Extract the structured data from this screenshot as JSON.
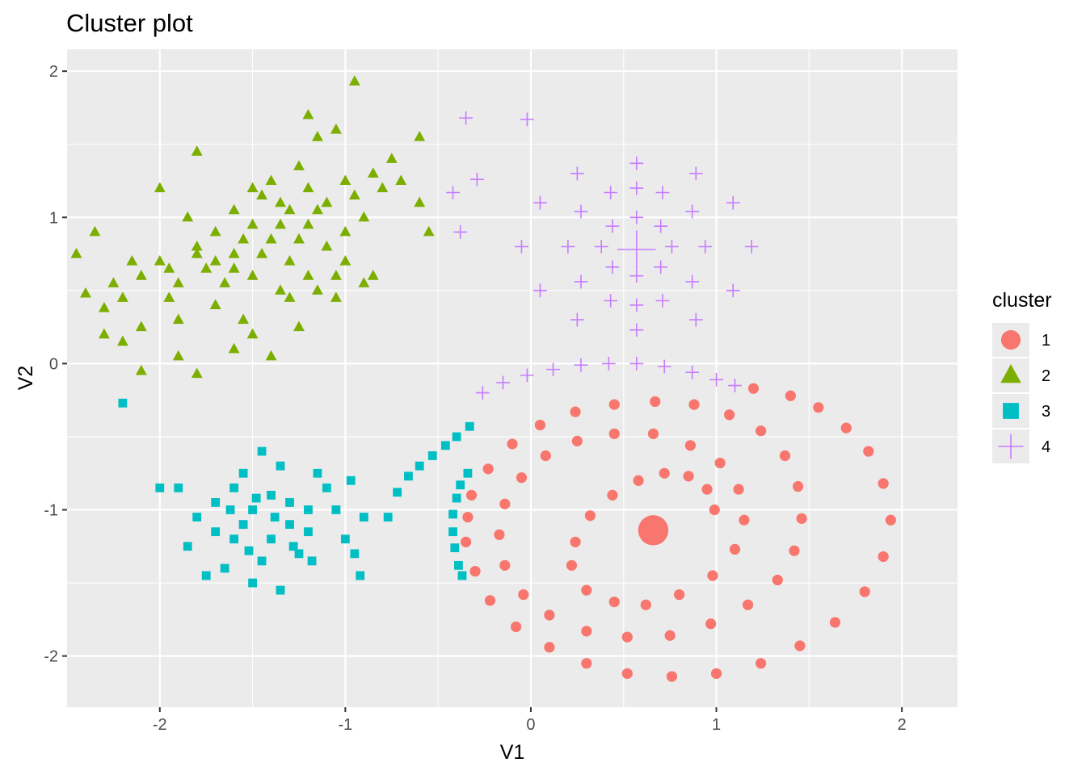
{
  "chart_data": {
    "type": "scatter",
    "title": "Cluster plot",
    "xlabel": "V1",
    "ylabel": "V2",
    "xlim": [
      -2.5,
      2.3
    ],
    "ylim": [
      -2.35,
      2.15
    ],
    "x_ticks": [
      {
        "value": -2,
        "label": "-2"
      },
      {
        "value": -1,
        "label": "-1"
      },
      {
        "value": 0,
        "label": "0"
      },
      {
        "value": 1,
        "label": "1"
      },
      {
        "value": 2,
        "label": "2"
      }
    ],
    "y_ticks": [
      {
        "value": -2,
        "label": "-2"
      },
      {
        "value": -1,
        "label": "-1"
      },
      {
        "value": 0,
        "label": "0"
      },
      {
        "value": 1,
        "label": "1"
      },
      {
        "value": 2,
        "label": "2"
      }
    ],
    "grid": true,
    "legend_position": "right",
    "legend": {
      "title": "cluster",
      "entries": [
        {
          "label": "1",
          "color": "#F8766D",
          "shape": "circle"
        },
        {
          "label": "2",
          "color": "#7CAE00",
          "shape": "triangle"
        },
        {
          "label": "3",
          "color": "#00BFC4",
          "shape": "square"
        },
        {
          "label": "4",
          "color": "#C77CFF",
          "shape": "plus"
        }
      ]
    },
    "centers": [
      {
        "cluster": "1",
        "x": 0.66,
        "y": -1.14
      },
      {
        "cluster": "4",
        "x": 0.57,
        "y": 0.78
      }
    ],
    "series": [
      {
        "name": "1",
        "color": "#F8766D",
        "shape": "circle",
        "points": [
          [
            0.99,
            -1.0
          ],
          [
            0.95,
            -0.86
          ],
          [
            0.85,
            -0.77
          ],
          [
            0.72,
            -0.75
          ],
          [
            0.58,
            -0.8
          ],
          [
            0.44,
            -0.9
          ],
          [
            0.32,
            -1.04
          ],
          [
            0.24,
            -1.22
          ],
          [
            0.22,
            -1.38
          ],
          [
            0.3,
            -1.55
          ],
          [
            0.45,
            -1.63
          ],
          [
            0.62,
            -1.65
          ],
          [
            0.8,
            -1.58
          ],
          [
            0.98,
            -1.45
          ],
          [
            1.1,
            -1.27
          ],
          [
            1.15,
            -1.07
          ],
          [
            1.12,
            -0.86
          ],
          [
            1.02,
            -0.68
          ],
          [
            0.86,
            -0.56
          ],
          [
            0.66,
            -0.48
          ],
          [
            0.45,
            -0.48
          ],
          [
            0.25,
            -0.53
          ],
          [
            0.08,
            -0.63
          ],
          [
            -0.05,
            -0.78
          ],
          [
            -0.14,
            -0.96
          ],
          [
            -0.17,
            -1.17
          ],
          [
            -0.14,
            -1.38
          ],
          [
            -0.04,
            -1.58
          ],
          [
            0.1,
            -1.72
          ],
          [
            0.3,
            -1.83
          ],
          [
            0.52,
            -1.87
          ],
          [
            0.75,
            -1.86
          ],
          [
            0.97,
            -1.78
          ],
          [
            1.17,
            -1.65
          ],
          [
            1.33,
            -1.48
          ],
          [
            1.42,
            -1.28
          ],
          [
            1.46,
            -1.06
          ],
          [
            1.44,
            -0.84
          ],
          [
            1.37,
            -0.63
          ],
          [
            1.24,
            -0.46
          ],
          [
            1.07,
            -0.35
          ],
          [
            0.88,
            -0.28
          ],
          [
            0.67,
            -0.26
          ],
          [
            0.45,
            -0.28
          ],
          [
            0.24,
            -0.33
          ],
          [
            0.05,
            -0.42
          ],
          [
            -0.1,
            -0.55
          ],
          [
            -0.23,
            -0.72
          ],
          [
            -0.32,
            -0.9
          ],
          [
            -0.34,
            -1.05
          ],
          [
            -0.35,
            -1.22
          ],
          [
            -0.3,
            -1.42
          ],
          [
            -0.22,
            -1.62
          ],
          [
            -0.08,
            -1.8
          ],
          [
            0.1,
            -1.94
          ],
          [
            0.3,
            -2.05
          ],
          [
            0.52,
            -2.12
          ],
          [
            0.76,
            -2.14
          ],
          [
            1.0,
            -2.12
          ],
          [
            1.24,
            -2.05
          ],
          [
            1.45,
            -1.93
          ],
          [
            1.64,
            -1.77
          ],
          [
            1.8,
            -1.56
          ],
          [
            1.9,
            -1.32
          ],
          [
            1.94,
            -1.07
          ],
          [
            1.9,
            -0.82
          ],
          [
            1.82,
            -0.6
          ],
          [
            1.7,
            -0.44
          ],
          [
            1.55,
            -0.3
          ],
          [
            1.4,
            -0.22
          ],
          [
            1.2,
            -0.17
          ]
        ]
      },
      {
        "name": "2",
        "color": "#7CAE00",
        "shape": "triangle",
        "points": [
          [
            -2.4,
            0.48
          ],
          [
            -2.3,
            0.38
          ],
          [
            -2.2,
            0.45
          ],
          [
            -2.1,
            0.6
          ],
          [
            -2.0,
            0.7
          ],
          [
            -1.9,
            0.55
          ],
          [
            -1.8,
            0.8
          ],
          [
            -1.7,
            0.9
          ],
          [
            -1.6,
            0.75
          ],
          [
            -1.5,
            0.95
          ],
          [
            -1.4,
            0.85
          ],
          [
            -1.3,
            1.05
          ],
          [
            -1.2,
            0.95
          ],
          [
            -1.1,
            1.1
          ],
          [
            -1.0,
            0.9
          ],
          [
            -0.9,
            1.0
          ],
          [
            -0.8,
            1.2
          ],
          [
            -0.7,
            1.25
          ],
          [
            -0.6,
            1.1
          ],
          [
            -0.55,
            0.9
          ],
          [
            -1.4,
            1.25
          ],
          [
            -1.25,
            1.35
          ],
          [
            -1.15,
            1.55
          ],
          [
            -1.05,
            1.6
          ],
          [
            -0.95,
            1.93
          ],
          [
            -1.2,
            1.7
          ],
          [
            -1.8,
            1.45
          ],
          [
            -2.0,
            1.2
          ],
          [
            -2.2,
            0.15
          ],
          [
            -2.1,
            -0.05
          ],
          [
            -1.8,
            -0.07
          ],
          [
            -1.6,
            0.1
          ],
          [
            -1.4,
            0.05
          ],
          [
            -1.55,
            0.3
          ],
          [
            -1.35,
            0.5
          ],
          [
            -1.2,
            0.6
          ],
          [
            -1.0,
            0.7
          ],
          [
            -0.9,
            0.55
          ],
          [
            -1.7,
            0.4
          ],
          [
            -1.9,
            0.3
          ],
          [
            -2.1,
            0.25
          ],
          [
            -2.3,
            0.2
          ],
          [
            -1.6,
            1.05
          ],
          [
            -1.45,
            1.15
          ],
          [
            -1.3,
            0.7
          ],
          [
            -1.1,
            0.8
          ],
          [
            -0.75,
            1.4
          ],
          [
            -0.6,
            1.55
          ],
          [
            -1.5,
            0.6
          ],
          [
            -1.65,
            0.55
          ],
          [
            -1.75,
            0.65
          ],
          [
            -1.85,
            1.0
          ],
          [
            -2.35,
            0.9
          ],
          [
            -2.45,
            0.75
          ],
          [
            -1.95,
            0.45
          ],
          [
            -1.05,
            0.45
          ],
          [
            -0.85,
            0.6
          ],
          [
            -1.25,
            0.85
          ],
          [
            -1.35,
            0.95
          ],
          [
            -1.55,
            0.85
          ],
          [
            -1.7,
            0.7
          ],
          [
            -1.95,
            0.65
          ],
          [
            -2.15,
            0.7
          ],
          [
            -2.25,
            0.55
          ],
          [
            -1.5,
            1.2
          ],
          [
            -1.35,
            1.1
          ],
          [
            -1.15,
            1.05
          ],
          [
            -0.95,
            1.15
          ],
          [
            -0.85,
            1.3
          ],
          [
            -1.0,
            1.25
          ],
          [
            -1.2,
            1.2
          ],
          [
            -1.45,
            0.75
          ],
          [
            -1.6,
            0.65
          ],
          [
            -1.8,
            0.75
          ],
          [
            -1.3,
            0.45
          ],
          [
            -1.15,
            0.5
          ],
          [
            -1.05,
            0.6
          ],
          [
            -1.25,
            0.25
          ],
          [
            -1.5,
            0.2
          ],
          [
            -1.9,
            0.05
          ]
        ]
      },
      {
        "name": "3",
        "color": "#00BFC4",
        "shape": "square",
        "points": [
          [
            -1.5,
            -1.0
          ],
          [
            -1.4,
            -0.9
          ],
          [
            -1.3,
            -1.1
          ],
          [
            -1.6,
            -1.2
          ],
          [
            -1.7,
            -0.95
          ],
          [
            -1.2,
            -1.0
          ],
          [
            -1.1,
            -0.85
          ],
          [
            -1.45,
            -1.35
          ],
          [
            -1.55,
            -0.75
          ],
          [
            -1.35,
            -0.7
          ],
          [
            -1.8,
            -1.05
          ],
          [
            -1.9,
            -0.85
          ],
          [
            -1.0,
            -1.2
          ],
          [
            -0.9,
            -1.05
          ],
          [
            -1.25,
            -1.3
          ],
          [
            -1.65,
            -1.4
          ],
          [
            -1.5,
            -1.5
          ],
          [
            -1.35,
            -1.55
          ],
          [
            -1.85,
            -1.25
          ],
          [
            -1.15,
            -0.75
          ],
          [
            -1.45,
            -0.6
          ],
          [
            -1.55,
            -1.1
          ],
          [
            -1.4,
            -1.2
          ],
          [
            -1.3,
            -0.95
          ],
          [
            -1.7,
            -1.15
          ],
          [
            -1.6,
            -0.85
          ],
          [
            -1.2,
            -1.15
          ],
          [
            -1.05,
            -1.0
          ],
          [
            -0.95,
            -1.3
          ],
          [
            -1.75,
            -1.45
          ],
          [
            -2.2,
            -0.27
          ],
          [
            -0.92,
            -1.45
          ],
          [
            -0.97,
            -0.8
          ],
          [
            -2.0,
            -0.85
          ],
          [
            -1.38,
            -1.05
          ],
          [
            -1.48,
            -0.92
          ],
          [
            -1.62,
            -1.0
          ],
          [
            -1.28,
            -1.25
          ],
          [
            -1.18,
            -1.35
          ],
          [
            -1.52,
            -1.28
          ],
          [
            -0.77,
            -1.05
          ],
          [
            -0.72,
            -0.88
          ],
          [
            -0.66,
            -0.77
          ],
          [
            -0.6,
            -0.7
          ],
          [
            -0.53,
            -0.63
          ],
          [
            -0.46,
            -0.56
          ],
          [
            -0.4,
            -0.5
          ],
          [
            -0.33,
            -0.43
          ],
          [
            -0.34,
            -0.75
          ],
          [
            -0.38,
            -0.83
          ],
          [
            -0.4,
            -0.92
          ],
          [
            -0.42,
            -1.03
          ],
          [
            -0.42,
            -1.15
          ],
          [
            -0.41,
            -1.26
          ],
          [
            -0.39,
            -1.38
          ],
          [
            -0.37,
            -1.45
          ]
        ]
      },
      {
        "name": "4",
        "color": "#C77CFF",
        "shape": "plus",
        "points": [
          [
            -0.35,
            1.68
          ],
          [
            -0.02,
            1.67
          ],
          [
            -0.29,
            1.26
          ],
          [
            -0.42,
            1.17
          ],
          [
            -0.38,
            0.9
          ],
          [
            0.38,
            0.8
          ],
          [
            0.44,
            0.94
          ],
          [
            0.57,
            1.0
          ],
          [
            0.7,
            0.94
          ],
          [
            0.76,
            0.8
          ],
          [
            0.7,
            0.66
          ],
          [
            0.57,
            0.6
          ],
          [
            0.44,
            0.66
          ],
          [
            0.2,
            0.8
          ],
          [
            0.27,
            1.04
          ],
          [
            0.43,
            1.17
          ],
          [
            0.57,
            1.2
          ],
          [
            0.71,
            1.17
          ],
          [
            0.87,
            1.04
          ],
          [
            0.94,
            0.8
          ],
          [
            0.87,
            0.56
          ],
          [
            0.71,
            0.43
          ],
          [
            0.57,
            0.4
          ],
          [
            0.43,
            0.43
          ],
          [
            0.27,
            0.56
          ],
          [
            -0.05,
            0.8
          ],
          [
            0.05,
            1.1
          ],
          [
            0.25,
            1.3
          ],
          [
            0.57,
            1.37
          ],
          [
            0.89,
            1.3
          ],
          [
            1.09,
            1.1
          ],
          [
            1.19,
            0.8
          ],
          [
            1.09,
            0.5
          ],
          [
            0.89,
            0.3
          ],
          [
            0.57,
            0.23
          ],
          [
            0.25,
            0.3
          ],
          [
            0.05,
            0.5
          ],
          [
            -0.26,
            -0.2
          ],
          [
            -0.15,
            -0.13
          ],
          [
            -0.02,
            -0.08
          ],
          [
            0.12,
            -0.04
          ],
          [
            0.27,
            -0.01
          ],
          [
            0.42,
            0.0
          ],
          [
            0.57,
            0.0
          ],
          [
            0.72,
            -0.02
          ],
          [
            0.87,
            -0.06
          ],
          [
            1.0,
            -0.11
          ],
          [
            1.1,
            -0.15
          ]
        ]
      }
    ]
  }
}
